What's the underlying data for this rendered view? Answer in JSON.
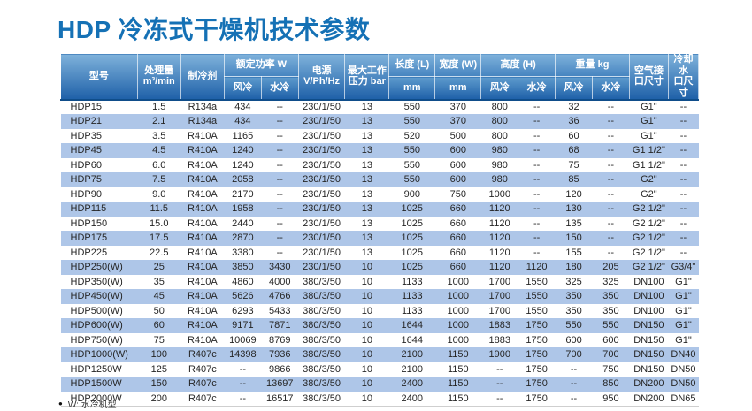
{
  "page": {
    "title": "HDP 冷冻式干燥机技术参数",
    "footnote_bullet": "●",
    "footnote": "W: 水冷机型"
  },
  "colors": {
    "title": "#1571b5",
    "hdr-top": "#7fb2db",
    "hdr-bot": "#1e60a8",
    "hdr-line": "#0f4d8a",
    "stripe": "#aec6e8",
    "text": "#262626"
  },
  "table": {
    "header": {
      "model": "型号",
      "capacity_l1": "处理量",
      "capacity_l2": "m³/min",
      "refrigerant": "制冷剂",
      "power_group": "额定功率 W",
      "air": "风冷",
      "water": "水冷",
      "supply_l1": "电源",
      "supply_l2": "V/Ph/Hz",
      "pressure_l1": "最大工作",
      "pressure_l2": "压力 bar",
      "length": "长度 (L)",
      "width": "宽度 (W)",
      "mm": "mm",
      "height_group": "高度 (H)",
      "weight_group": "重量 kg",
      "air_port_l1": "空气接",
      "air_port_l2": "口尺寸",
      "water_port_l1": "冷却水",
      "water_port_l2": "口尺寸"
    },
    "rows": [
      [
        "HDP15",
        "1.5",
        "R134a",
        "434",
        "--",
        "230/1/50",
        "13",
        "550",
        "370",
        "800",
        "--",
        "32",
        "--",
        "G1\"",
        "--"
      ],
      [
        "HDP21",
        "2.1",
        "R134a",
        "434",
        "--",
        "230/1/50",
        "13",
        "550",
        "370",
        "800",
        "--",
        "36",
        "--",
        "G1\"",
        "--"
      ],
      [
        "HDP35",
        "3.5",
        "R410A",
        "1165",
        "--",
        "230/1/50",
        "13",
        "520",
        "500",
        "800",
        "--",
        "60",
        "--",
        "G1\"",
        "--"
      ],
      [
        "HDP45",
        "4.5",
        "R410A",
        "1240",
        "--",
        "230/1/50",
        "13",
        "550",
        "600",
        "980",
        "--",
        "68",
        "--",
        "G1 1/2\"",
        "--"
      ],
      [
        "HDP60",
        "6.0",
        "R410A",
        "1240",
        "--",
        "230/1/50",
        "13",
        "550",
        "600",
        "980",
        "--",
        "75",
        "--",
        "G1 1/2\"",
        "--"
      ],
      [
        "HDP75",
        "7.5",
        "R410A",
        "2058",
        "--",
        "230/1/50",
        "13",
        "550",
        "600",
        "980",
        "--",
        "85",
        "--",
        "G2\"",
        "--"
      ],
      [
        "HDP90",
        "9.0",
        "R410A",
        "2170",
        "--",
        "230/1/50",
        "13",
        "900",
        "750",
        "1000",
        "--",
        "120",
        "--",
        "G2\"",
        "--"
      ],
      [
        "HDP115",
        "11.5",
        "R410A",
        "1958",
        "--",
        "230/1/50",
        "13",
        "1025",
        "660",
        "1120",
        "--",
        "130",
        "--",
        "G2 1/2\"",
        "--"
      ],
      [
        "HDP150",
        "15.0",
        "R410A",
        "2440",
        "--",
        "230/1/50",
        "13",
        "1025",
        "660",
        "1120",
        "--",
        "135",
        "--",
        "G2 1/2\"",
        "--"
      ],
      [
        "HDP175",
        "17.5",
        "R410A",
        "2870",
        "--",
        "230/1/50",
        "13",
        "1025",
        "660",
        "1120",
        "--",
        "150",
        "--",
        "G2 1/2\"",
        "--"
      ],
      [
        "HDP225",
        "22.5",
        "R410A",
        "3380",
        "--",
        "230/1/50",
        "13",
        "1025",
        "660",
        "1120",
        "--",
        "155",
        "--",
        "G2 1/2\"",
        "--"
      ],
      [
        "HDP250(W)",
        "25",
        "R410A",
        "3850",
        "3430",
        "230/1/50",
        "10",
        "1025",
        "660",
        "1120",
        "1120",
        "180",
        "205",
        "G2 1/2\"",
        "G3/4\""
      ],
      [
        "HDP350(W)",
        "35",
        "R410A",
        "4860",
        "4000",
        "380/3/50",
        "10",
        "1133",
        "1000",
        "1700",
        "1550",
        "325",
        "325",
        "DN100",
        "G1\""
      ],
      [
        "HDP450(W)",
        "45",
        "R410A",
        "5626",
        "4766",
        "380/3/50",
        "10",
        "1133",
        "1000",
        "1700",
        "1550",
        "350",
        "350",
        "DN100",
        "G1\""
      ],
      [
        "HDP500(W)",
        "50",
        "R410A",
        "6293",
        "5433",
        "380/3/50",
        "10",
        "1133",
        "1000",
        "1700",
        "1550",
        "350",
        "350",
        "DN100",
        "G1\""
      ],
      [
        "HDP600(W)",
        "60",
        "R410A",
        "9171",
        "7871",
        "380/3/50",
        "10",
        "1644",
        "1000",
        "1883",
        "1750",
        "550",
        "550",
        "DN150",
        "G1\""
      ],
      [
        "HDP750(W)",
        "75",
        "R410A",
        "10069",
        "8769",
        "380/3/50",
        "10",
        "1644",
        "1000",
        "1883",
        "1750",
        "600",
        "600",
        "DN150",
        "G1\""
      ],
      [
        "HDP1000(W)",
        "100",
        "R407c",
        "14398",
        "7936",
        "380/3/50",
        "10",
        "2100",
        "1150",
        "1900",
        "1750",
        "700",
        "700",
        "DN150",
        "DN40"
      ],
      [
        "HDP1250W",
        "125",
        "R407c",
        "--",
        "9866",
        "380/3/50",
        "10",
        "2100",
        "1150",
        "--",
        "1750",
        "--",
        "750",
        "DN150",
        "DN50"
      ],
      [
        "HDP1500W",
        "150",
        "R407c",
        "--",
        "13697",
        "380/3/50",
        "10",
        "2400",
        "1150",
        "--",
        "1750",
        "--",
        "850",
        "DN200",
        "DN50"
      ],
      [
        "HDP2000W",
        "200",
        "R407c",
        "--",
        "16517",
        "380/3/50",
        "10",
        "2400",
        "1150",
        "--",
        "1750",
        "--",
        "950",
        "DN200",
        "DN65"
      ]
    ]
  }
}
